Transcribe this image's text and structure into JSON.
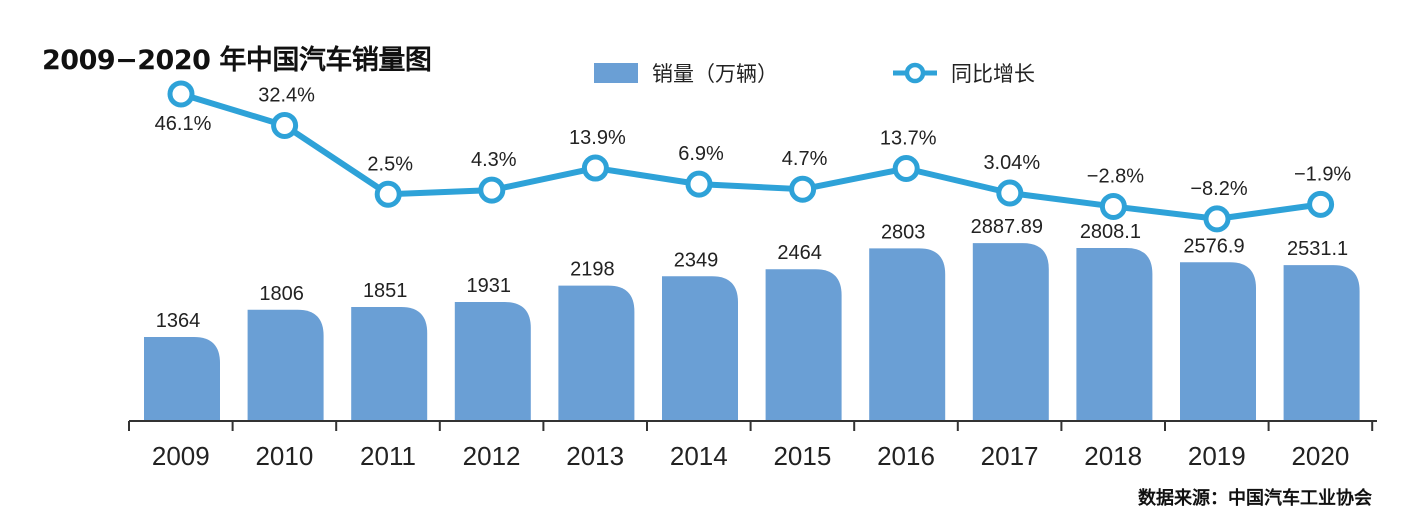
{
  "title": "2009−2020 年中国汽车销量图",
  "source": "数据来源：中国汽车工业协会",
  "colors": {
    "bar": "#6a9fd5",
    "line": "#2ea2d8",
    "axis": "#333333",
    "text": "#222222"
  },
  "chart_data": {
    "type": "bar",
    "categories": [
      "2009",
      "2010",
      "2011",
      "2012",
      "2013",
      "2014",
      "2015",
      "2016",
      "2017",
      "2018",
      "2019",
      "2020"
    ],
    "series": [
      {
        "name": "销量（万辆）",
        "type": "bar",
        "values": [
          1364,
          1806,
          1851,
          1931,
          2198,
          2349,
          2464,
          2803,
          2887.89,
          2808.1,
          2576.9,
          2531.1
        ],
        "labels": [
          "1364",
          "1806",
          "1851",
          "1931",
          "2198",
          "2349",
          "2464",
          "2803",
          "2887.89",
          "2808.1",
          "2576.9",
          "2531.1"
        ]
      },
      {
        "name": "同比增长",
        "type": "line",
        "values": [
          46.1,
          32.4,
          2.5,
          4.3,
          13.9,
          6.9,
          4.7,
          13.7,
          3.04,
          -2.8,
          -8.2,
          -1.9
        ],
        "labels": [
          "46.1%",
          "32.4%",
          "2.5%",
          "4.3%",
          "13.9%",
          "6.9%",
          "4.7%",
          "13.7%",
          "3.04%",
          "−2.8%",
          "−8.2%",
          "−1.9%"
        ]
      }
    ],
    "legend": {
      "position": "top-center",
      "entries": [
        "销量（万辆）",
        "同比增长"
      ]
    },
    "grid": false,
    "xlabel": "",
    "ylabel": ""
  }
}
